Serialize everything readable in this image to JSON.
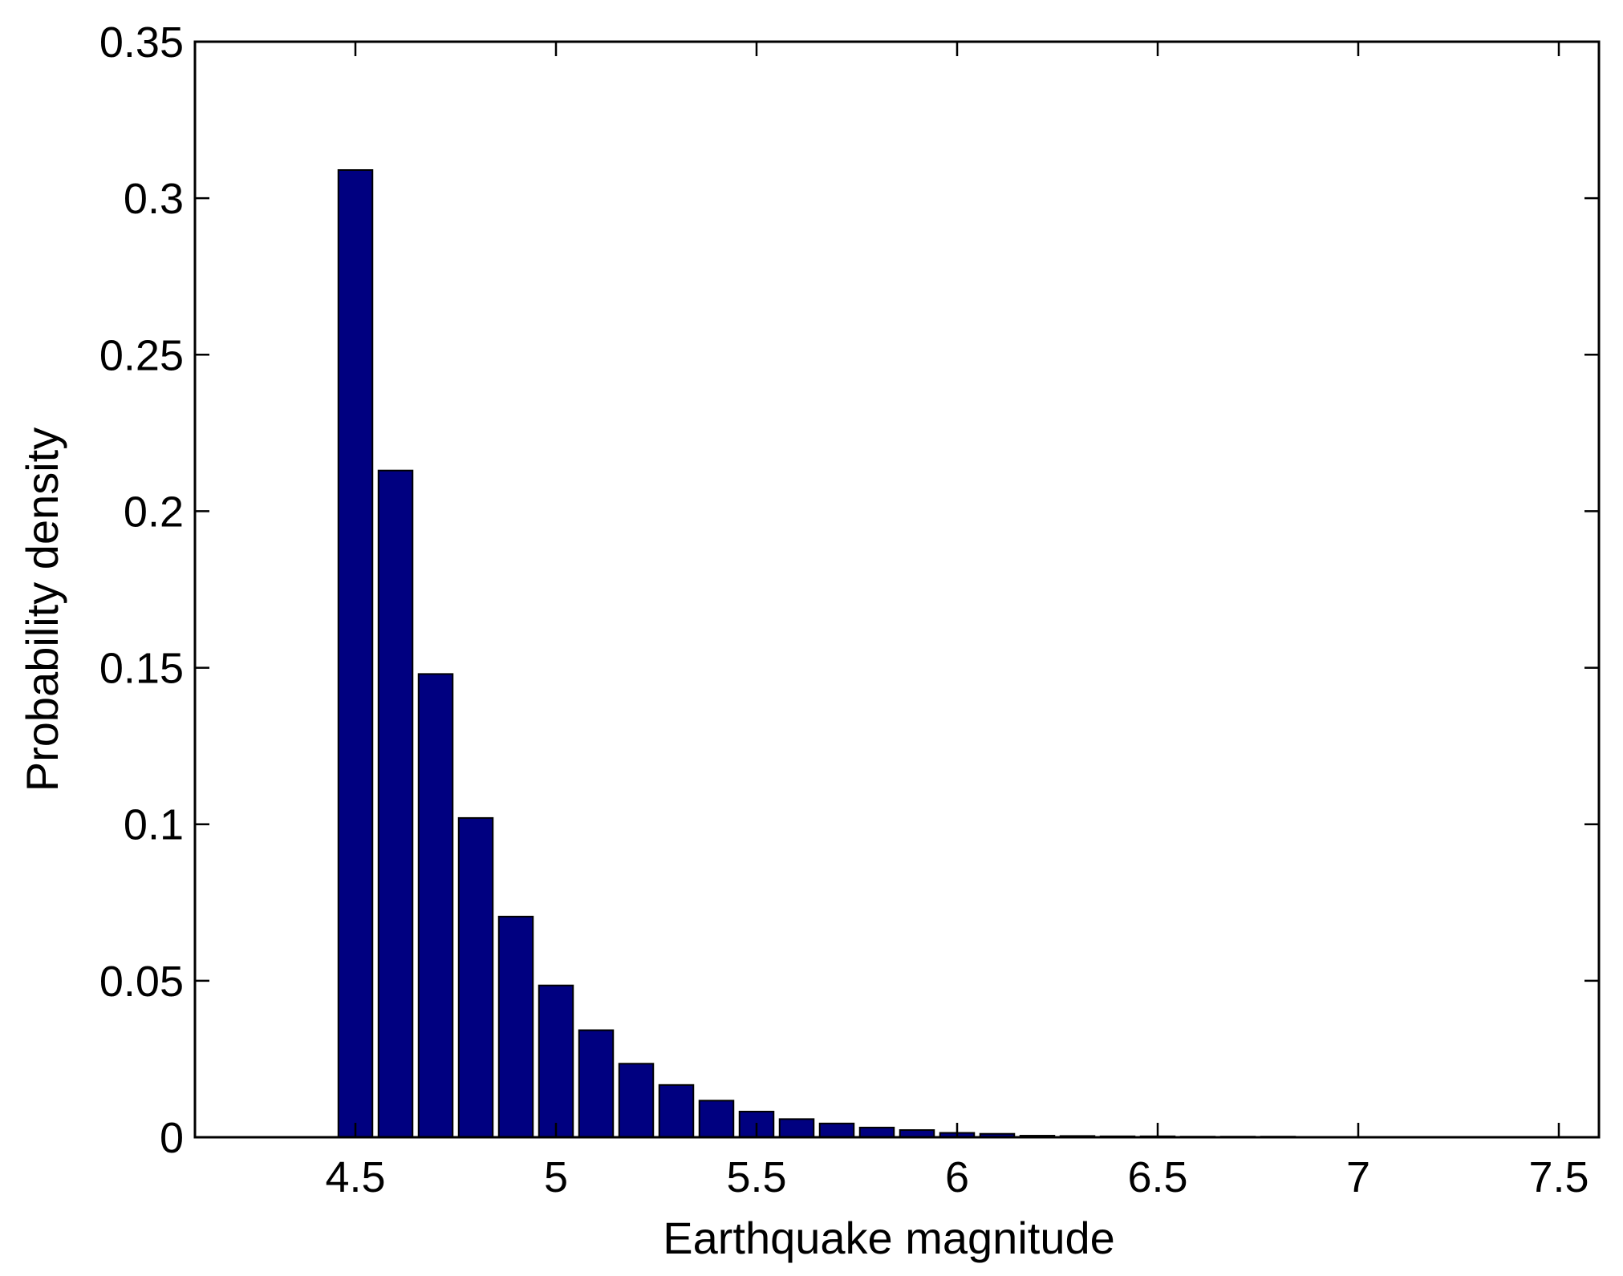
{
  "chart_data": {
    "type": "bar",
    "title": "",
    "xlabel": "Earthquake magnitude",
    "ylabel": "Probability density",
    "xlim": [
      4.1,
      7.6
    ],
    "ylim": [
      0,
      0.35
    ],
    "xticks": [
      4.5,
      5,
      5.5,
      6,
      6.5,
      7,
      7.5
    ],
    "xtick_labels": [
      "4.5",
      "5",
      "5.5",
      "6",
      "6.5",
      "7",
      "7.5"
    ],
    "yticks": [
      0,
      0.05,
      0.1,
      0.15,
      0.2,
      0.25,
      0.3,
      0.35
    ],
    "ytick_labels": [
      "0",
      "0.05",
      "0.1",
      "0.15",
      "0.2",
      "0.25",
      "0.3",
      "0.35"
    ],
    "grid": false,
    "bar_color": "#000080",
    "bar_width": 0.085,
    "x": [
      4.5,
      4.6,
      4.7,
      4.8,
      4.9,
      5.0,
      5.1,
      5.2,
      5.3,
      5.4,
      5.5,
      5.6,
      5.7,
      5.8,
      5.9,
      6.0,
      6.1,
      6.2,
      6.3,
      6.4,
      6.5,
      6.6,
      6.7,
      6.8,
      6.9,
      7.0,
      7.1,
      7.2,
      7.3,
      7.4,
      7.5
    ],
    "values": [
      0.309,
      0.213,
      0.148,
      0.102,
      0.0705,
      0.0485,
      0.0342,
      0.0235,
      0.0167,
      0.0117,
      0.0082,
      0.0058,
      0.0044,
      0.0031,
      0.0023,
      0.0014,
      0.0011,
      0.0005,
      0.0004,
      0.0003,
      0.0003,
      0.0002,
      0.0002,
      0.0002,
      0.0001,
      0.0001,
      0.0001,
      0.0001,
      0.0001,
      0.0001,
      0.0001
    ]
  }
}
